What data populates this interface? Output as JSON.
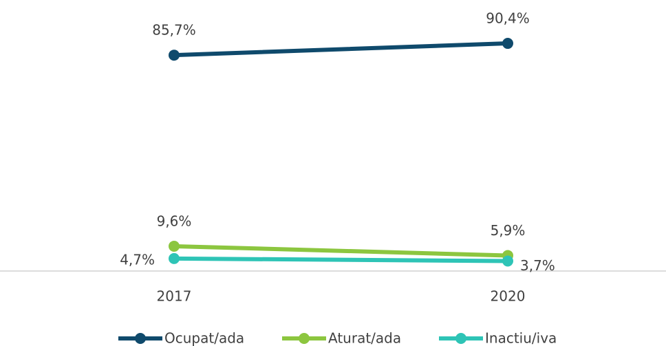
{
  "chart_data": {
    "type": "line",
    "categories": [
      "2017",
      "2020"
    ],
    "ylim": [
      0,
      100
    ],
    "series": [
      {
        "name": "Ocupat/ada",
        "color": "#0f4a6c",
        "values": [
          85.7,
          90.4
        ],
        "value_labels": [
          "85,7%",
          "90,4%"
        ]
      },
      {
        "name": "Aturat/ada",
        "color": "#8cc63f",
        "values": [
          9.6,
          5.9
        ],
        "value_labels": [
          "9,6%",
          "5,9%"
        ]
      },
      {
        "name": "Inactiu/iva",
        "color": "#2ec4b6",
        "values": [
          4.7,
          3.7
        ],
        "value_labels": [
          "4,7%",
          "3,7%"
        ]
      }
    ],
    "legend": "bottom"
  }
}
